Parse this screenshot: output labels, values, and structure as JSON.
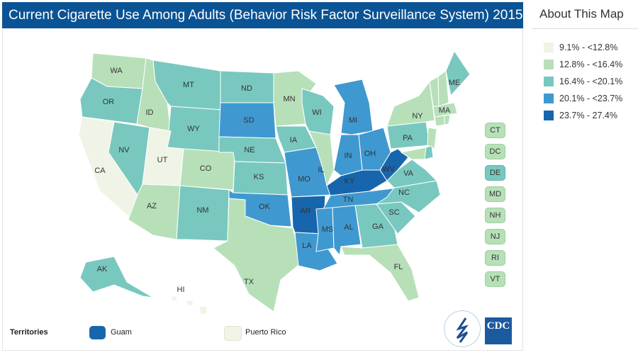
{
  "title": "Current Cigarette Use Among Adults (Behavior Risk Factor Surveillance System) 2015",
  "sidebar": {
    "heading": "About This Map"
  },
  "legend": [
    {
      "label": "9.1% - <12.8%",
      "color": "#f0f4e6"
    },
    {
      "label": "12.8% - <16.4%",
      "color": "#b7e0b9"
    },
    {
      "label": "16.4% - <20.1%",
      "color": "#79c8bf"
    },
    {
      "label": "20.1% - <23.7%",
      "color": "#3f99d0"
    },
    {
      "label": "23.7% - 27.4%",
      "color": "#1766ad"
    }
  ],
  "states": [
    {
      "code": "WA",
      "bin": 1
    },
    {
      "code": "OR",
      "bin": 2
    },
    {
      "code": "CA",
      "bin": 0
    },
    {
      "code": "NV",
      "bin": 2
    },
    {
      "code": "ID",
      "bin": 1
    },
    {
      "code": "MT",
      "bin": 2
    },
    {
      "code": "WY",
      "bin": 2
    },
    {
      "code": "UT",
      "bin": 0
    },
    {
      "code": "CO",
      "bin": 1
    },
    {
      "code": "AZ",
      "bin": 1
    },
    {
      "code": "NM",
      "bin": 2
    },
    {
      "code": "ND",
      "bin": 2
    },
    {
      "code": "SD",
      "bin": 3
    },
    {
      "code": "NE",
      "bin": 2
    },
    {
      "code": "KS",
      "bin": 2
    },
    {
      "code": "OK",
      "bin": 3
    },
    {
      "code": "TX",
      "bin": 1
    },
    {
      "code": "MN",
      "bin": 1
    },
    {
      "code": "IA",
      "bin": 2
    },
    {
      "code": "MO",
      "bin": 3
    },
    {
      "code": "AR",
      "bin": 4
    },
    {
      "code": "LA",
      "bin": 3
    },
    {
      "code": "WI",
      "bin": 2
    },
    {
      "code": "IL",
      "bin": 1
    },
    {
      "code": "MI",
      "bin": 3
    },
    {
      "code": "IN",
      "bin": 3
    },
    {
      "code": "OH",
      "bin": 3
    },
    {
      "code": "KY",
      "bin": 4
    },
    {
      "code": "TN",
      "bin": 3
    },
    {
      "code": "MS",
      "bin": 3
    },
    {
      "code": "AL",
      "bin": 3
    },
    {
      "code": "GA",
      "bin": 2
    },
    {
      "code": "FL",
      "bin": 1
    },
    {
      "code": "SC",
      "bin": 2
    },
    {
      "code": "NC",
      "bin": 2
    },
    {
      "code": "VA",
      "bin": 2
    },
    {
      "code": "WV",
      "bin": 4
    },
    {
      "code": "PA",
      "bin": 2
    },
    {
      "code": "NY",
      "bin": 1
    },
    {
      "code": "MA",
      "bin": 1
    },
    {
      "code": "ME",
      "bin": 2
    },
    {
      "code": "AK",
      "bin": 2
    },
    {
      "code": "HI",
      "bin": 0
    },
    {
      "code": "VT",
      "bin": 1
    },
    {
      "code": "NH",
      "bin": 1
    },
    {
      "code": "NJ",
      "bin": 1
    },
    {
      "code": "MD",
      "bin": 1
    },
    {
      "code": "DE",
      "bin": 2
    },
    {
      "code": "CT",
      "bin": 1
    },
    {
      "code": "RI",
      "bin": 1
    }
  ],
  "small_states": [
    {
      "code": "CT",
      "bin": 1
    },
    {
      "code": "DC",
      "bin": 1
    },
    {
      "code": "DE",
      "bin": 2
    },
    {
      "code": "MD",
      "bin": 1
    },
    {
      "code": "NH",
      "bin": 1
    },
    {
      "code": "NJ",
      "bin": 1
    },
    {
      "code": "RI",
      "bin": 1
    },
    {
      "code": "VT",
      "bin": 1
    }
  ],
  "territories": {
    "label": "Territories",
    "items": [
      {
        "name": "Guam",
        "bin": 4
      },
      {
        "name": "Puerto Rico",
        "bin": 0
      }
    ]
  },
  "logo": {
    "text": "CDC"
  }
}
